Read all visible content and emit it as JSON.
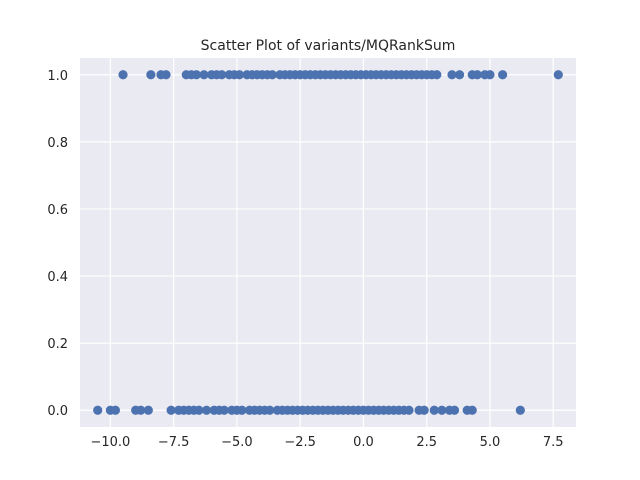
{
  "chart_data": {
    "type": "scatter",
    "title": "Scatter Plot of variants/MQRankSum",
    "xlabel": "",
    "ylabel": "",
    "xlim": [
      -11.2,
      8.4
    ],
    "ylim": [
      -0.05,
      1.05
    ],
    "grid": true,
    "x_ticks": [
      -10.0,
      -7.5,
      -5.0,
      -2.5,
      0.0,
      2.5,
      5.0,
      7.5
    ],
    "x_tick_labels": [
      "−10.0",
      "−7.5",
      "−5.0",
      "−2.5",
      "0.0",
      "2.5",
      "5.0",
      "7.5"
    ],
    "y_ticks": [
      0.0,
      0.2,
      0.4,
      0.6,
      0.8,
      1.0
    ],
    "y_tick_labels": [
      "0.0",
      "0.2",
      "0.4",
      "0.6",
      "0.8",
      "1.0"
    ],
    "colors": {
      "point": "#4c72b0",
      "plot_background": "#eaeaf2",
      "grid": "#ffffff"
    },
    "series": [
      {
        "y_value": 1.0,
        "x": [
          -9.5,
          -8.4,
          -8.0,
          -7.8,
          -7.0,
          -6.8,
          -6.6,
          -6.3,
          -6.0,
          -5.8,
          -5.6,
          -5.3,
          -5.1,
          -4.9,
          -4.6,
          -4.4,
          -4.2,
          -4.0,
          -3.8,
          -3.6,
          -3.3,
          -3.1,
          -2.9,
          -2.7,
          -2.5,
          -2.3,
          -2.1,
          -1.9,
          -1.7,
          -1.5,
          -1.3,
          -1.1,
          -0.9,
          -0.7,
          -0.5,
          -0.3,
          -0.1,
          0.1,
          0.3,
          0.5,
          0.7,
          0.9,
          1.1,
          1.3,
          1.5,
          1.7,
          1.9,
          2.1,
          2.3,
          2.5,
          2.7,
          2.9,
          3.5,
          3.8,
          4.3,
          4.5,
          4.8,
          5.0,
          5.5,
          7.7
        ]
      },
      {
        "y_value": 0.0,
        "x": [
          -10.5,
          -10.0,
          -9.8,
          -9.0,
          -8.8,
          -8.5,
          -7.6,
          -7.3,
          -7.1,
          -6.9,
          -6.7,
          -6.5,
          -6.2,
          -5.9,
          -5.7,
          -5.5,
          -5.2,
          -5.0,
          -4.8,
          -4.5,
          -4.3,
          -4.1,
          -3.9,
          -3.7,
          -3.4,
          -3.2,
          -3.0,
          -2.8,
          -2.6,
          -2.4,
          -2.2,
          -2.0,
          -1.8,
          -1.6,
          -1.4,
          -1.2,
          -1.0,
          -0.8,
          -0.6,
          -0.4,
          -0.2,
          0.0,
          0.2,
          0.4,
          0.6,
          0.8,
          1.0,
          1.2,
          1.4,
          1.6,
          1.8,
          2.2,
          2.4,
          2.8,
          3.1,
          3.4,
          3.6,
          4.1,
          4.3,
          6.2
        ]
      }
    ]
  }
}
